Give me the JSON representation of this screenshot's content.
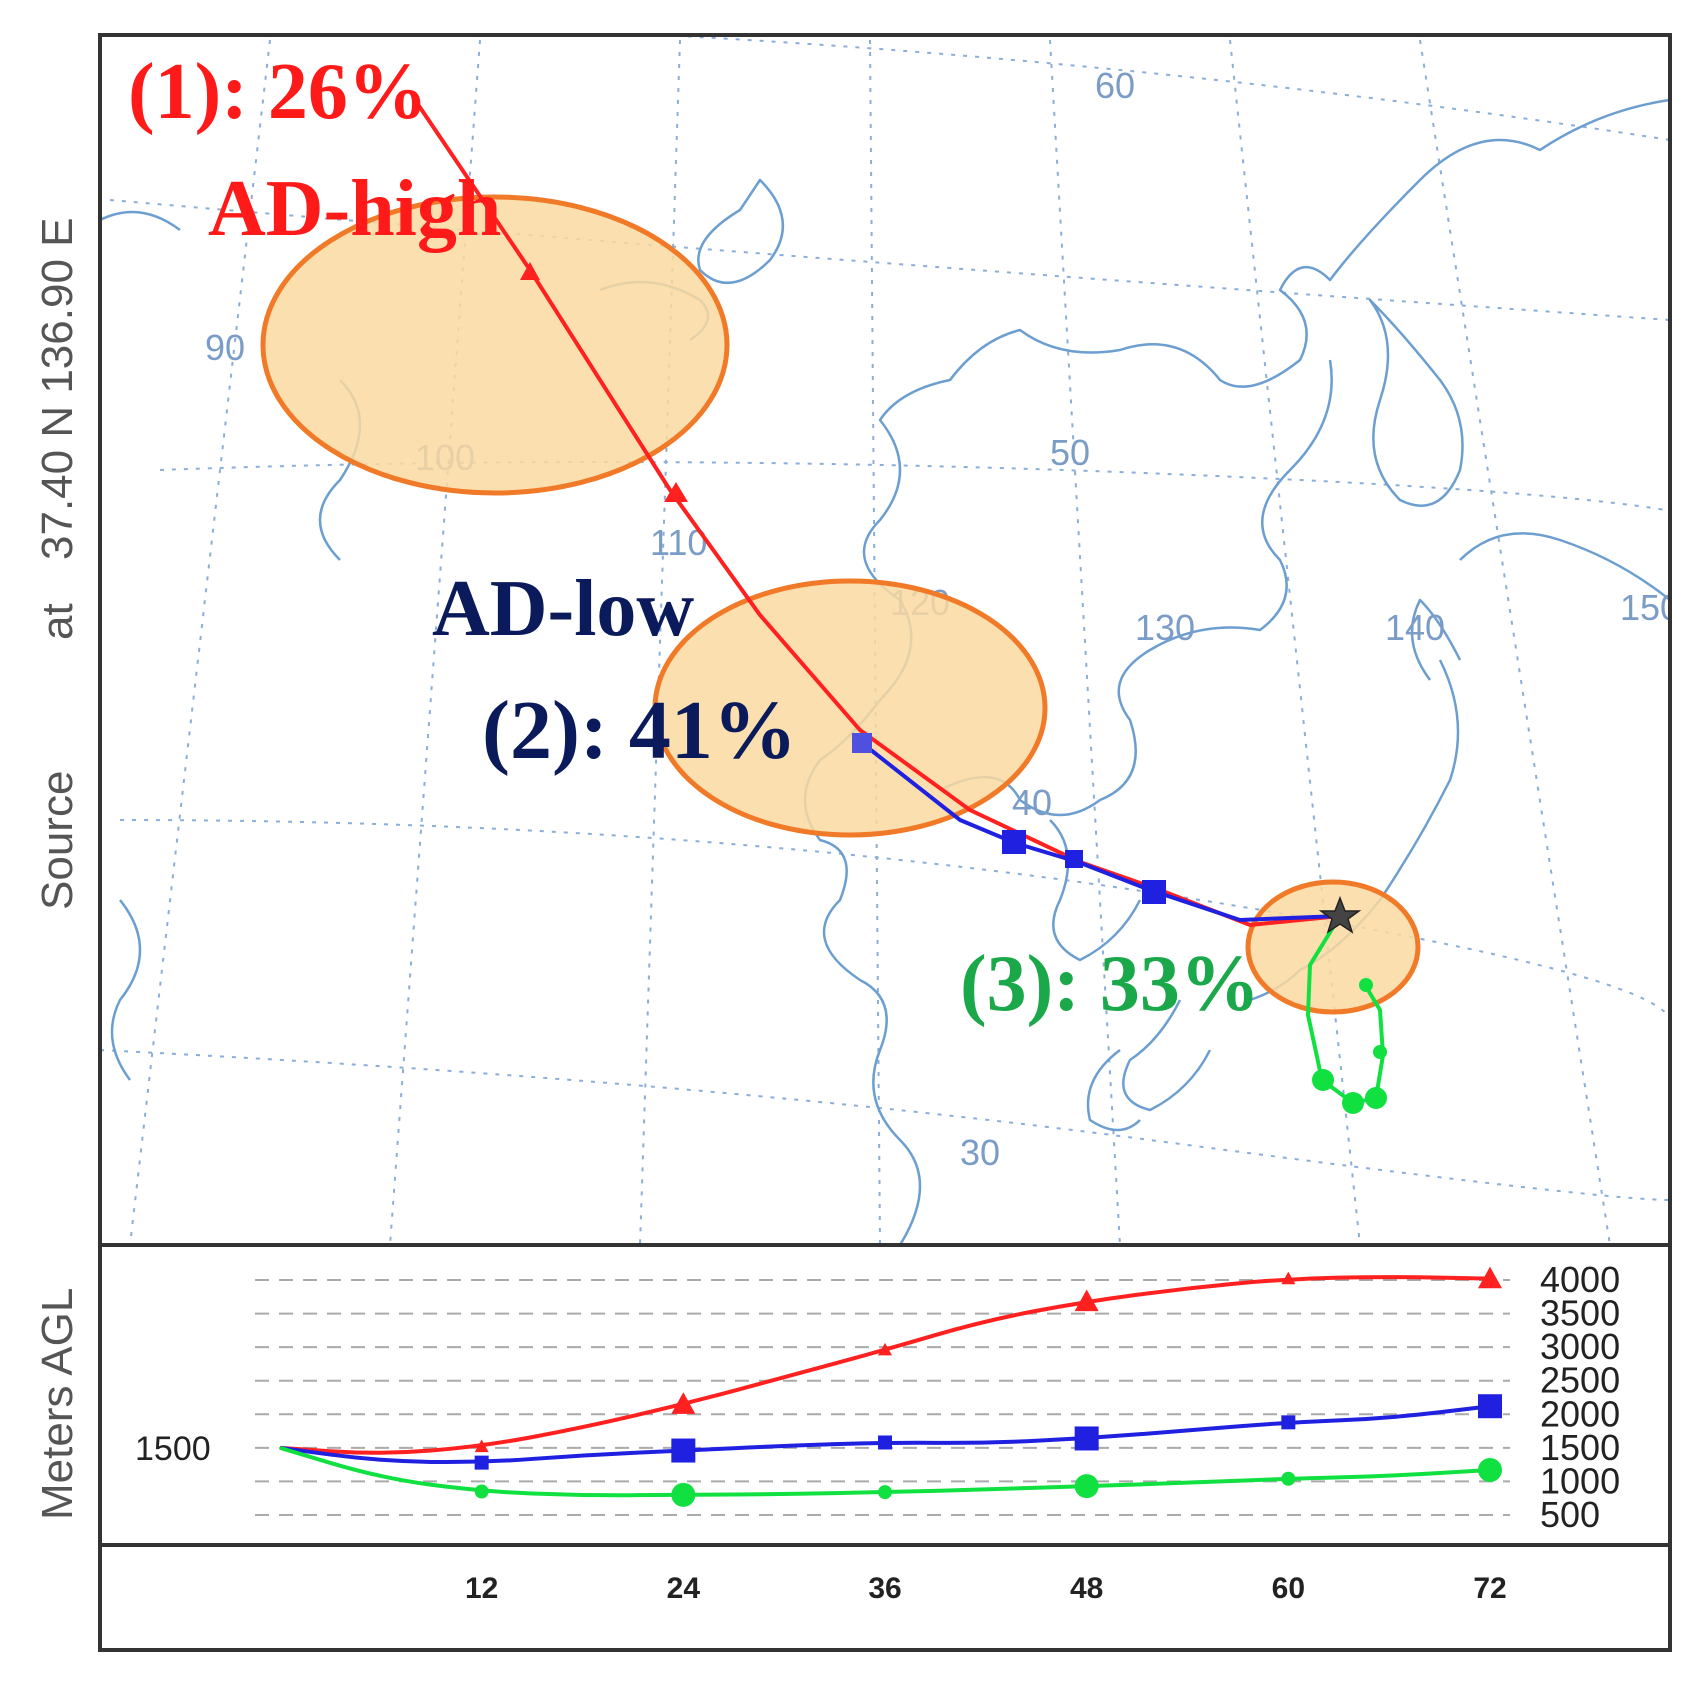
{
  "side_label": {
    "source": "Source",
    "at": "at",
    "coords": "37.40 N  136.90 E",
    "meters": "Meters AGL",
    "source_height": "1500"
  },
  "map_labels": {
    "lat": [
      "60",
      "50",
      "30"
    ],
    "lon": [
      "90",
      "100",
      "110",
      "120",
      "130",
      "140",
      "150"
    ],
    "lon_partial": "40"
  },
  "annotations": {
    "cluster1": "(1): 26%",
    "ad_high": "AD-high",
    "ad_low": "AD-low",
    "cluster2": "(2): 41%",
    "cluster3": "(3): 33%"
  },
  "colors": {
    "trajectory_high": "#ff2020",
    "trajectory_mid": "#2020e0",
    "trajectory_low": "#10e040",
    "ellipse_fill": "#fbd9a0",
    "ellipse_stroke": "#f07a28",
    "coastline": "#6c9ed0",
    "annot_red": "#ff1a1a",
    "annot_navy": "#0a1a5a",
    "annot_green": "#1aa84a"
  },
  "chart_data": {
    "type": "line",
    "xlabel": "",
    "ylabel": "Meters AGL",
    "x_ticks": [
      12,
      24,
      36,
      48,
      60,
      72
    ],
    "y_ticks": [
      500,
      1000,
      1500,
      2000,
      2500,
      3000,
      3500,
      4000
    ],
    "xlim": [
      0,
      72
    ],
    "ylim": [
      500,
      4000
    ],
    "series": [
      {
        "color": "#ff2020",
        "marker": "triangle",
        "x": [
          0,
          6,
          12,
          18,
          24,
          30,
          36,
          42,
          48,
          54,
          60,
          66,
          72
        ],
        "y": [
          1500,
          1400,
          1520,
          1800,
          2150,
          2550,
          2960,
          3400,
          3680,
          3880,
          4020,
          4050,
          4020
        ]
      },
      {
        "color": "#2020e0",
        "marker": "square",
        "x": [
          0,
          6,
          12,
          18,
          24,
          30,
          36,
          42,
          48,
          54,
          60,
          66,
          72
        ],
        "y": [
          1500,
          1300,
          1280,
          1390,
          1460,
          1530,
          1580,
          1570,
          1640,
          1760,
          1880,
          1940,
          2120
        ]
      },
      {
        "color": "#10e040",
        "marker": "circle",
        "x": [
          0,
          6,
          12,
          18,
          24,
          30,
          36,
          42,
          48,
          54,
          60,
          66,
          72
        ],
        "y": [
          1500,
          1050,
          850,
          790,
          800,
          810,
          840,
          880,
          930,
          980,
          1040,
          1080,
          1170
        ]
      }
    ]
  }
}
